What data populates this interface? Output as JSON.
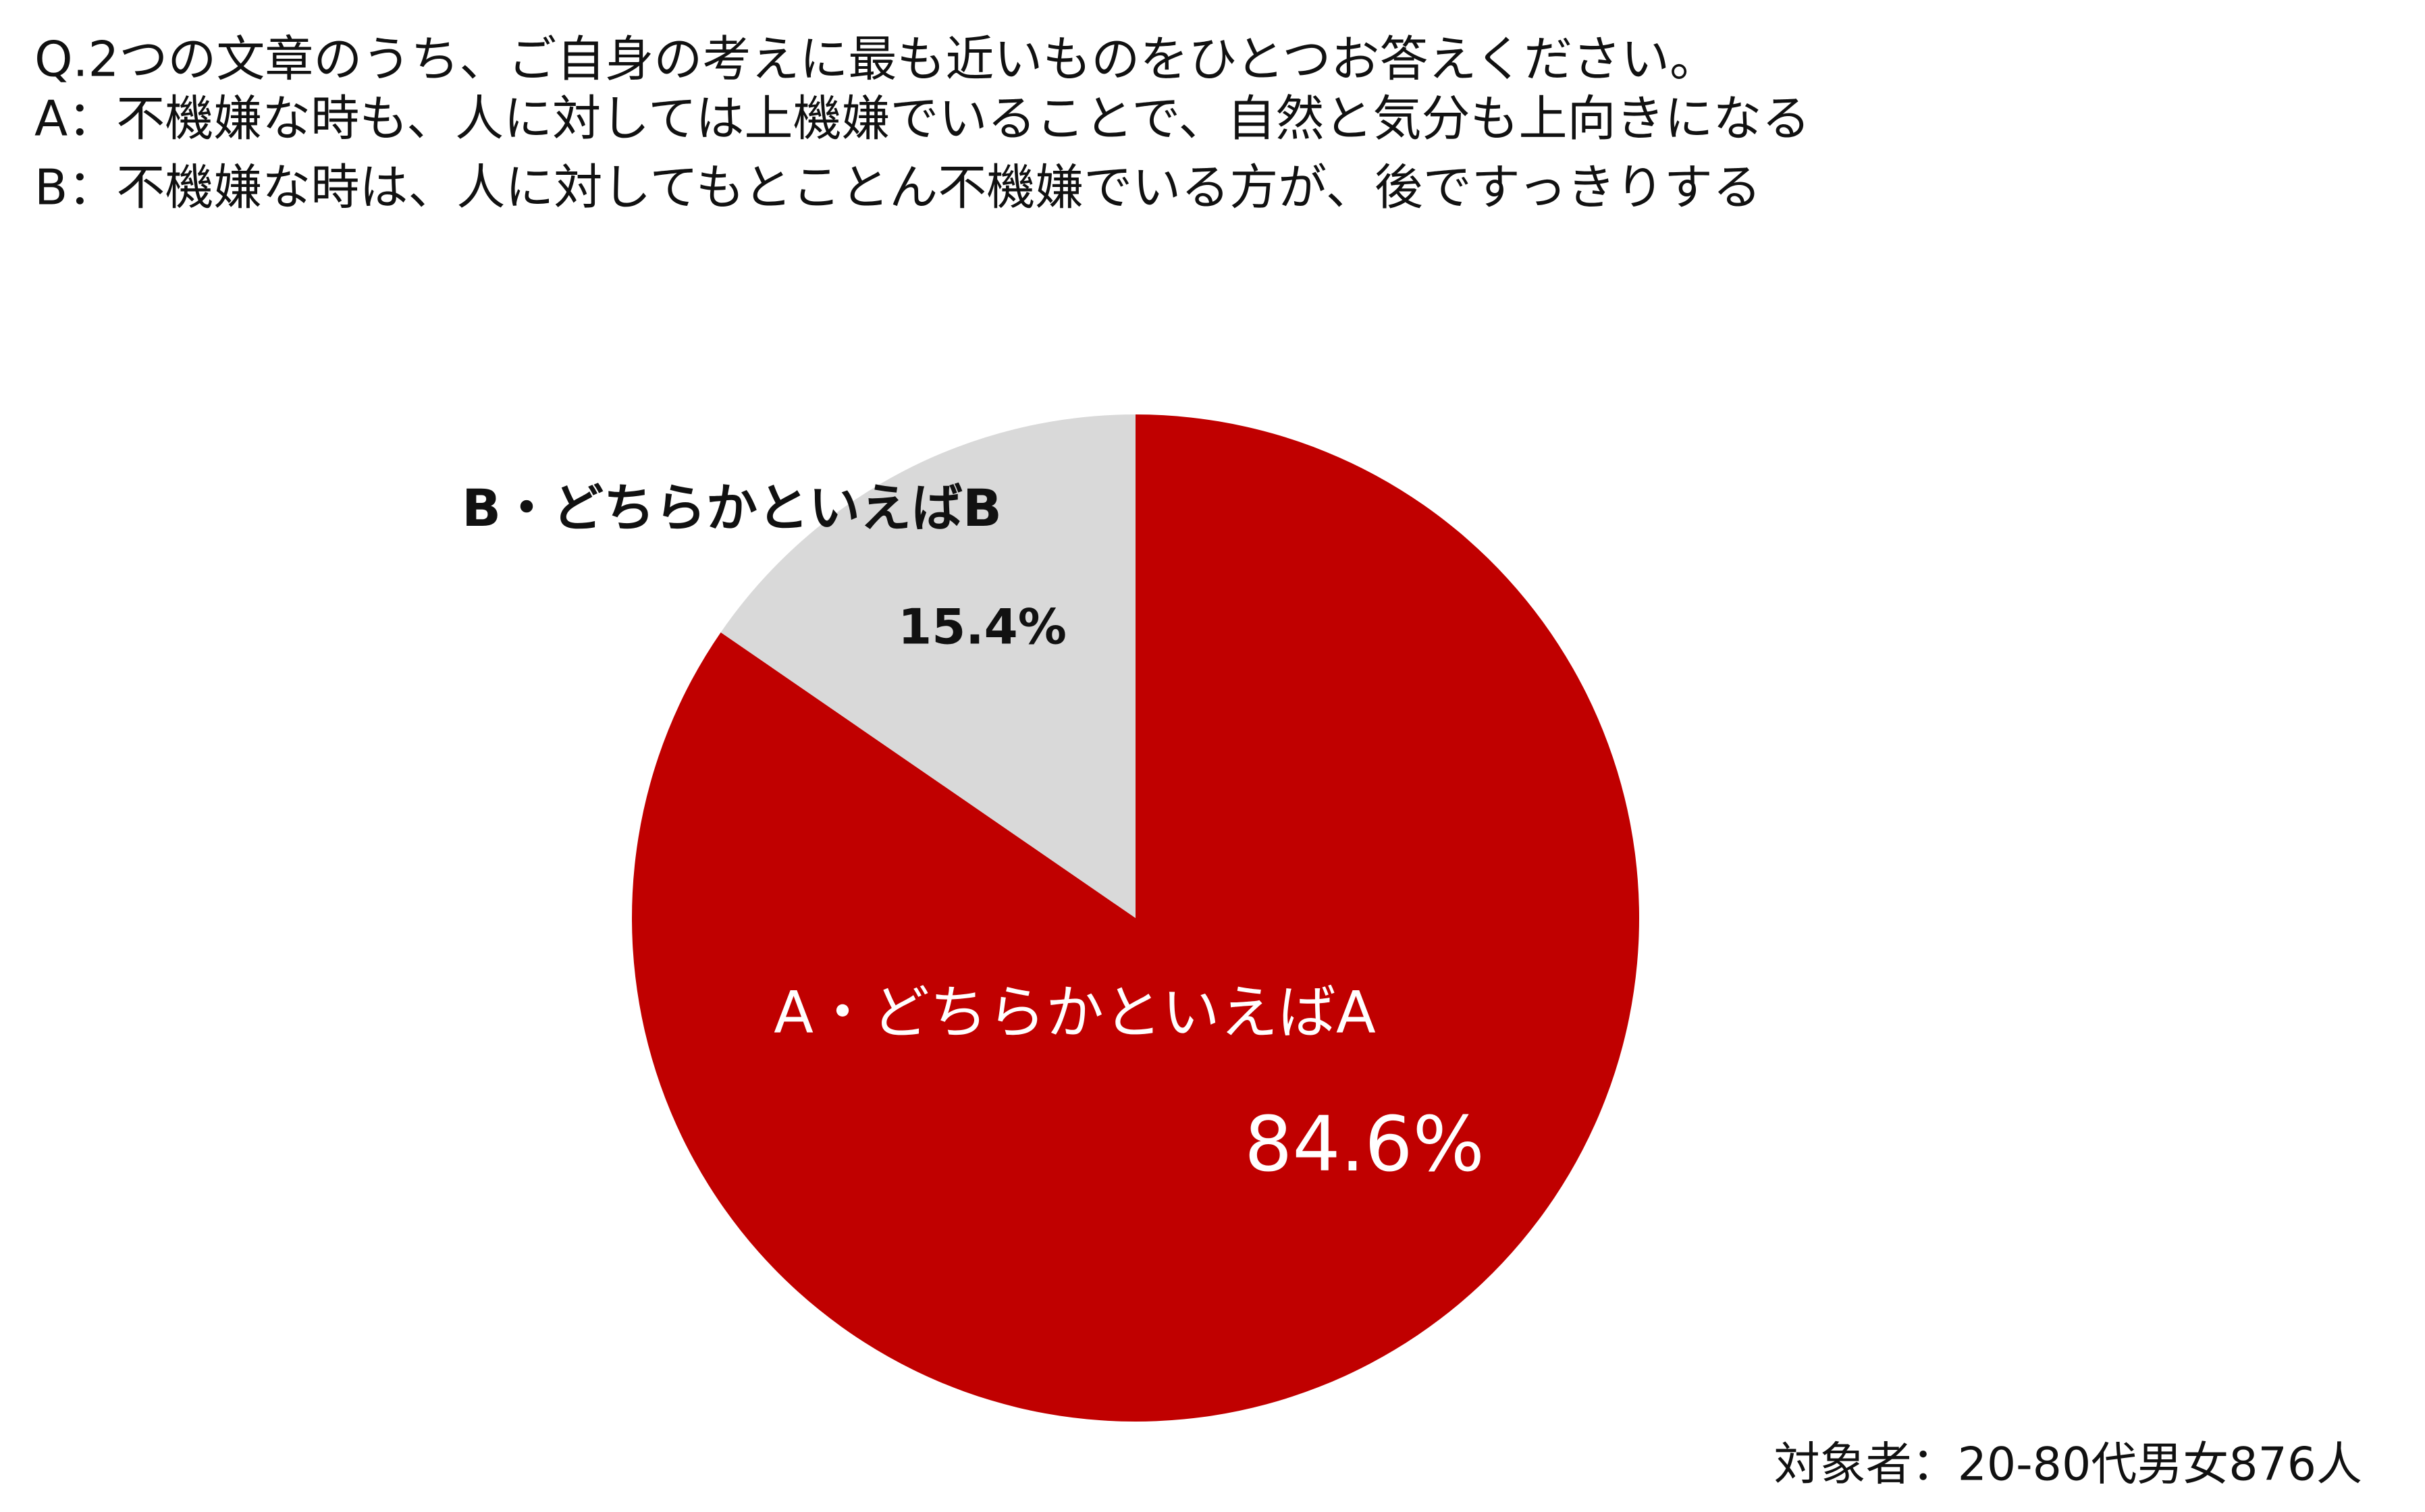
{
  "chart_data": {
    "type": "pie",
    "title": [
      "Q.2つの文章のうち、ご自身の考えに最も近いものをひとつお答えください。",
      "A：不機嫌な時も、人に対しては上機嫌でいることで、自然と気分も上向きになる",
      "B：不機嫌な時は、人に対してもとことん不機嫌でいる方が、後ですっきりする"
    ],
    "categories": [
      "A・どちらかといえばA",
      "B・どちらかといえばB"
    ],
    "values": [
      84.6,
      15.4
    ],
    "value_labels": [
      "84.6%",
      "15.4%"
    ],
    "colors": [
      "#c00000",
      "#d9d9d9"
    ],
    "note": "対象者：20-80代男女876人"
  }
}
